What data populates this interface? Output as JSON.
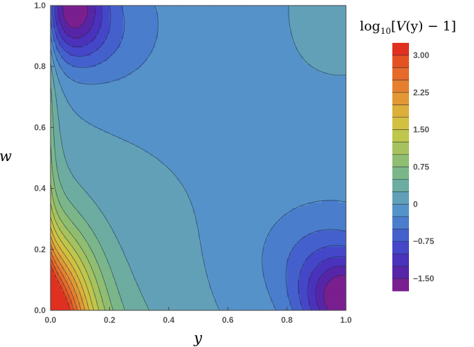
{
  "chart_data": {
    "type": "heatmap",
    "subtype": "contour",
    "title": "",
    "xlabel": "y",
    "ylabel": "w",
    "xlim": [
      0,
      1
    ],
    "ylim": [
      0,
      1
    ],
    "x_ticks": [
      "0.0",
      "0.2",
      "0.4",
      "0.6",
      "0.8",
      "1.0"
    ],
    "y_ticks": [
      "0.0",
      "0.2",
      "0.4",
      "0.6",
      "0.8",
      "1.0"
    ],
    "grid": false,
    "colorbar": {
      "label_parts": {
        "func": "log",
        "sub": "10",
        "open": "[",
        "var": "V",
        "arg": "(y)",
        "rest": " − 1]"
      },
      "range": [
        -1.75,
        3.25
      ],
      "tick_values": [
        3.0,
        2.25,
        1.5,
        0.75,
        0,
        -0.75,
        -1.5
      ],
      "tick_labels": [
        "3.00",
        "2.25",
        "1.50",
        "0.75",
        "0",
        "−0.75",
        "−1.50"
      ],
      "levels": [
        -1.75,
        -1.5,
        -1.25,
        -1.0,
        -0.75,
        -0.5,
        -0.25,
        0.0,
        0.25,
        0.5,
        0.75,
        1.0,
        1.25,
        1.5,
        1.75,
        2.0,
        2.25,
        2.5,
        2.75,
        3.0,
        3.25
      ],
      "colors": [
        "#7a1f8f",
        "#5725a8",
        "#4a32bc",
        "#4547c8",
        "#4460cc",
        "#4a7dcc",
        "#5592c9",
        "#62a0b8",
        "#6daca0",
        "#7bb68a",
        "#8fbd72",
        "#a6c25e",
        "#bfc64c",
        "#d2c040",
        "#dcae3a",
        "#e29834",
        "#e5802e",
        "#e66a29",
        "#e45224",
        "#e03020"
      ],
      "position": "right"
    },
    "regions": [
      {
        "value": 3.0,
        "where": "corner y=0, w=0"
      },
      {
        "value": -1.75,
        "where": "top-left corner near y=0.05, w=1.0"
      },
      {
        "value": -1.75,
        "where": "bottom-right corner near y=1.0, w=0.03"
      },
      {
        "value": -0.25,
        "where": "broad central band from upper left to lower right"
      },
      {
        "value": 0.0,
        "where": "top-right area, y>0.5, w>0.6"
      }
    ]
  }
}
